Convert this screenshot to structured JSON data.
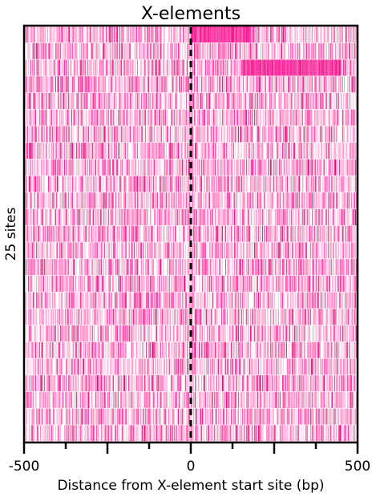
{
  "chart_data": {
    "type": "heatmap",
    "title": "X-elements",
    "xlabel": "Distance from X-element start site (bp)",
    "ylabel": "25 sites",
    "xlim": [
      -500,
      500
    ],
    "x_tick_labels": [
      "-500",
      "0",
      "500"
    ],
    "x_major_ticks": [
      -500,
      -250,
      0,
      250,
      500
    ],
    "x_minor_ticks": [
      -375,
      -125,
      125,
      375
    ],
    "rows": 25,
    "bin_size_bp": 2,
    "reference_line": {
      "x": 0,
      "style": "dashed",
      "color": "#000000"
    },
    "colors": {
      "light": "#ffb3d9",
      "medium": "#ff66b3",
      "dark": "#e6007e",
      "saturated": "#ff1493",
      "background": "#ffffff"
    },
    "dense_regions": [
      {
        "row": 1,
        "x_start": 0,
        "x_end": 180
      },
      {
        "row": 3,
        "x_start": 150,
        "x_end": 450
      }
    ]
  }
}
